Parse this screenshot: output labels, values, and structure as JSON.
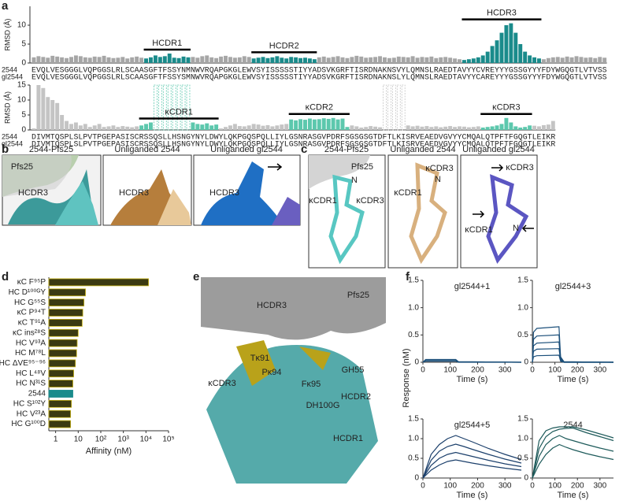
{
  "panel_a": {
    "label": "a",
    "charts": [
      {
        "y_label": "RMSD (Å)",
        "ylim": [
          0,
          15
        ],
        "yticks": [
          0,
          5,
          10
        ],
        "cdr_labels": [
          "HCDR1",
          "HCDR2",
          "HCDR3"
        ],
        "series": [
          {
            "color": "#a6a6a6",
            "values": [
              1.5,
              1.8,
              1.6,
              1.4,
              1.9,
              1.7,
              1.5,
              1.3,
              1.6,
              2.0,
              1.8,
              1.5,
              1.4,
              1.7,
              1.6,
              1.9,
              1.5,
              1.3,
              1.4,
              1.6,
              1.2,
              1.5,
              1.7,
              1.4,
              null,
              null,
              null,
              null,
              null,
              null,
              null,
              null,
              null,
              null,
              1.6,
              1.4,
              1.8,
              2.0,
              1.5,
              1.3,
              1.7,
              1.9,
              1.6,
              1.4,
              1.5,
              1.8,
              1.6,
              null,
              null,
              null,
              null,
              null,
              null,
              null,
              null,
              null,
              null,
              null,
              null,
              null,
              null,
              1.5,
              1.7,
              1.4,
              1.6,
              1.8,
              1.5,
              1.3,
              1.6,
              1.9,
              1.7,
              1.4,
              1.5,
              1.6,
              1.8,
              1.5,
              1.3,
              1.4,
              1.7,
              1.6,
              1.5,
              1.8,
              1.4,
              1.6,
              1.5,
              1.7,
              1.3,
              1.5,
              1.6,
              1.4,
              1.2,
              1.0,
              null,
              null,
              null,
              null,
              null,
              null,
              null,
              null,
              null,
              null,
              null,
              null,
              null,
              null,
              null,
              null,
              null,
              1.0,
              1.3,
              1.5,
              1.6,
              1.4,
              1.7,
              1.5,
              1.8,
              1.6,
              1.4,
              1.5,
              1.3,
              1.6,
              1.4
            ]
          },
          {
            "color": "#1a8b8b",
            "values": [
              null,
              null,
              null,
              null,
              null,
              null,
              null,
              null,
              null,
              null,
              null,
              null,
              null,
              null,
              null,
              null,
              null,
              null,
              null,
              null,
              null,
              null,
              null,
              null,
              1.2,
              1.5,
              2.0,
              1.6,
              1.8,
              2.5,
              1.4,
              1.3,
              1.7,
              1.5,
              null,
              null,
              null,
              null,
              null,
              null,
              null,
              null,
              null,
              null,
              null,
              null,
              null,
              1.2,
              1.4,
              1.6,
              1.3,
              1.5,
              1.8,
              1.4,
              1.2,
              1.6,
              1.5,
              1.3,
              1.4,
              1.2,
              1.0,
              null,
              null,
              null,
              null,
              null,
              null,
              null,
              null,
              null,
              null,
              null,
              null,
              null,
              null,
              null,
              null,
              null,
              null,
              null,
              null,
              null,
              null,
              null,
              null,
              null,
              null,
              null,
              null,
              null,
              null,
              null,
              0.8,
              1.0,
              1.2,
              1.5,
              2.0,
              3.0,
              4.5,
              6.0,
              8.0,
              10.0,
              10.5,
              8.0,
              5.0,
              3.0,
              2.0,
              1.5,
              1.2,
              null,
              null,
              null,
              null,
              null,
              null,
              null,
              null,
              null,
              null,
              null,
              null,
              null,
              null
            ]
          }
        ],
        "seq_labels": [
          "2544",
          "gl2544"
        ],
        "sequences": [
          "EVQLVESGGGLVQPGGSLRLSCAASGFTFSSYNMNWVRQAPGKGLEWVSYISSSSSTIYYADSVKGRFTISRDNAKNSVYLQMNSLRAEDTAVYYCVREYYYGSSGYYYFDYWGQGTLVTVSS",
          "EVQLVESGGGLVQPGGSLRLSCAASGFTFSSYSMNWVRQAPGKGLEWVSYISSSSSTIYYADSVKGRFTISRDNAKNSLYLQMNSLRAEDTAVYYCAREYYYGSSGYYYFDYWGQGTLVTVSS"
        ]
      },
      {
        "y_label": "RMSD (Å)",
        "ylim": [
          0,
          15
        ],
        "yticks": [
          0,
          5,
          10,
          15
        ],
        "cdr_labels": [
          "κCDR1",
          "κCDR2",
          "κCDR3"
        ],
        "series": [
          {
            "color": "#c4c4c4",
            "values": [
              0.5,
              15,
              14,
              11,
              10,
              9,
              5,
              3,
              2,
              2.5,
              1.5,
              2,
              1,
              1.5,
              2,
              1,
              1.2,
              1.5,
              1,
              1.3,
              1.1,
              0.9,
              1.2,
              null,
              null,
              null,
              null,
              null,
              null,
              null,
              null,
              null,
              null,
              null,
              null,
              null,
              null,
              null,
              null,
              null,
              0.5,
              1,
              1.5,
              2,
              1.3,
              1.2,
              1.5,
              2,
              1.8,
              1.4,
              1.6,
              1.2,
              1.5,
              1.8,
              2,
              null,
              null,
              null,
              null,
              null,
              null,
              null,
              null,
              null,
              null,
              null,
              null,
              null,
              1.5,
              1.2,
              0.8,
              1.0,
              1.3,
              1.1,
              0.9,
              null,
              null,
              null,
              null,
              null,
              1.5,
              1.2,
              1.4,
              1.1,
              1.3,
              1.0,
              1.2,
              0.9,
              1.1,
              1.3,
              1.0,
              1.2,
              1.1,
              0.9,
              1.0,
              1.2,
              null,
              null,
              null,
              null,
              null,
              null,
              null,
              null,
              null,
              null,
              null,
              1.4,
              1.2,
              1.6,
              1.8,
              3.0
            ]
          },
          {
            "color": "#5cc8ad",
            "values": [
              null,
              null,
              null,
              null,
              null,
              null,
              null,
              null,
              null,
              null,
              null,
              null,
              null,
              null,
              null,
              null,
              null,
              null,
              null,
              null,
              null,
              null,
              null,
              1.5,
              2.0,
              2.5,
              null,
              null,
              null,
              null,
              null,
              null,
              null,
              null,
              2.5,
              2.0,
              1.8,
              2.2,
              1.5,
              1.8,
              null,
              null,
              null,
              null,
              null,
              null,
              null,
              null,
              null,
              null,
              null,
              null,
              null,
              null,
              null,
              3.5,
              3.2,
              3.6,
              3.4,
              3.8,
              3.5,
              3.6,
              3.9,
              3.7,
              4.0,
              3.5,
              3.8,
              1.0,
              null,
              null,
              null,
              null,
              null,
              null,
              null,
              null,
              null,
              null,
              null,
              null,
              null,
              null,
              null,
              null,
              null,
              null,
              null,
              null,
              null,
              null,
              null,
              null,
              null,
              null,
              null,
              null,
              0.8,
              1.0,
              1.2,
              1.5,
              2.0,
              4.0,
              2.5,
              1.2,
              0.8,
              1.0,
              1.5,
              null,
              null,
              null,
              null,
              null
            ]
          }
        ],
        "seq_labels": [
          "2544",
          "gl2544"
        ],
        "sequences": [
          "DIVMTQSPLSLPVTPGEPASISCRSSQSLLHSNGYNYLDWYLQKPGQSPQLLIYLGSNRASGVPDRFSGSGSGTDFTLKISRVEAEDVGVYYCMQALQTPFTFGQGTLEIKR",
          "DIVMTQSPLSLPVTPGEPASISCRSSQSLLHSNGYNYLDWYLQKPGQSPQLLIYLGSNRASGVPDRFSGSGSGTDFTLKISRVEAEDVGVYYCMQALQTPFTFGQGTLEIKR"
        ]
      }
    ]
  },
  "panel_b": {
    "label": "b",
    "headers": [
      "2544-Pfs25",
      "Unliganded 2544",
      "Unliganded gl2544"
    ],
    "labels": [
      "Pfs25",
      "HCDR3",
      "HCDR3",
      "HCDR3"
    ]
  },
  "panel_c": {
    "label": "c",
    "headers": [
      "2544-Pfs25",
      "Unliganded 2544",
      "Unliganded gl2544"
    ],
    "labels": [
      "Pfs25",
      "N",
      "κCDR1",
      "κCDR3",
      "κCDR3",
      "N",
      "κCDR1",
      "κCDR3",
      "κCDR1",
      "N"
    ]
  },
  "panel_d": {
    "label": "d",
    "type": "bar",
    "x_label": "Affinity (nM)",
    "log_x": true,
    "xlim": [
      0.5,
      100000
    ],
    "xticks": [
      {
        "value": 1,
        "label": "1"
      },
      {
        "value": 10,
        "label": "10"
      },
      {
        "value": 100,
        "label": "10²"
      },
      {
        "value": 1000,
        "label": "10³"
      },
      {
        "value": 10000,
        "label": "10⁴"
      },
      {
        "value": 100000,
        "label": "10⁵"
      }
    ],
    "categories": [
      "κC F⁹⁵P",
      "HC D¹⁰⁰ᴳY",
      "HC G⁵⁵S",
      "κC P⁹⁴T",
      "κC T⁹¹A",
      "κC ins²⁸S",
      "HC V⁹³A",
      "HC M⁷⁸L",
      "HC ΔVE⁹⁵⁻⁹⁶",
      "HC L⁴⁸V",
      "HC N³¹S",
      "2544",
      "HC S¹⁰²Y",
      "HC V²³A",
      "HC G¹⁰⁰D"
    ],
    "values": [
      13000,
      21,
      18,
      16,
      15,
      10,
      9,
      8.5,
      7.5,
      6.3,
      5.8,
      5.8,
      5,
      4.6,
      4.6
    ],
    "colors": [
      "#3b3a12",
      "#3b3a12",
      "#3b3a12",
      "#3b3a12",
      "#3b3a12",
      "#3b3a12",
      "#3b3a12",
      "#3b3a12",
      "#3b3a12",
      "#3b3a12",
      "#3b3a12",
      "#1a8b8b",
      "#3b3a12",
      "#3b3a12",
      "#3b3a12"
    ]
  },
  "panel_e": {
    "label": "e",
    "labels": [
      "Pfs25",
      "HCDR3",
      "κCDR3",
      "Tκ91",
      "Pκ94",
      "Fκ95",
      "GH55",
      "DH100G",
      "HCDR2",
      "HCDR1"
    ]
  },
  "panel_f": {
    "label": "f",
    "y_label": "Response (nM)",
    "charts": [
      {
        "type": "line",
        "title": "gl2544+1",
        "x_label": "Time (s)",
        "xlim": [
          0,
          360
        ],
        "xticks": [
          0,
          100,
          200,
          300
        ],
        "ylim": [
          0,
          1.5
        ],
        "yticks": [
          0,
          0.5,
          {
            "value": 1,
            "label": "1.0"
          },
          1.5
        ],
        "x": [
          0,
          10,
          120,
          130,
          360
        ],
        "series": [
          {
            "color": "#1b4f7a",
            "values": [
              0,
              0.05,
              0.05,
              0.01,
              0
            ]
          },
          {
            "color": "#1b4f7a",
            "values": [
              0,
              0.03,
              0.03,
              0.01,
              0
            ]
          },
          {
            "color": "#1b4f7a",
            "values": [
              0,
              0.02,
              0.02,
              0,
              0
            ]
          }
        ]
      },
      {
        "type": "line",
        "title": "gl2544+3",
        "x_label": "Time (s)",
        "xlim": [
          0,
          360
        ],
        "xticks": [
          0,
          100,
          200,
          300
        ],
        "ylim": [
          0,
          1.5
        ],
        "yticks": [
          0,
          0.5,
          {
            "value": 1,
            "label": "1.0"
          },
          1.5
        ],
        "x": [
          0,
          5,
          20,
          118,
          125,
          140,
          360
        ],
        "series": [
          {
            "color": "#1b4f7a",
            "values": [
              0,
              0.55,
              0.62,
              0.65,
              0.1,
              0.01,
              0
            ]
          },
          {
            "color": "#1b4f7a",
            "values": [
              0,
              0.42,
              0.48,
              0.5,
              0.08,
              0.01,
              0
            ]
          },
          {
            "color": "#1b4f7a",
            "values": [
              0,
              0.3,
              0.35,
              0.37,
              0.06,
              0,
              0
            ]
          },
          {
            "color": "#1b4f7a",
            "values": [
              0,
              0.2,
              0.24,
              0.25,
              0.04,
              0,
              0
            ]
          },
          {
            "color": "#1b4f7a",
            "values": [
              0,
              0.1,
              0.12,
              0.13,
              0.02,
              0,
              0
            ]
          }
        ]
      },
      {
        "type": "line",
        "title": "gl2544+5",
        "x_label": "Time (s)",
        "xlim": [
          0,
          360
        ],
        "xticks": [
          0,
          100,
          200,
          300
        ],
        "ylim": [
          0,
          1.5
        ],
        "yticks": [
          0,
          0.5,
          {
            "value": 1,
            "label": "1.0"
          },
          1.5
        ],
        "x": [
          0,
          30,
          60,
          90,
          120,
          150,
          180,
          240,
          300,
          360
        ],
        "series": [
          {
            "color": "#1b3f6b",
            "values": [
              0,
              0.6,
              0.85,
              1.0,
              1.08,
              1.0,
              0.92,
              0.75,
              0.6,
              0.47
            ]
          },
          {
            "color": "#1b3f6b",
            "values": [
              0,
              0.45,
              0.68,
              0.8,
              0.86,
              0.8,
              0.73,
              0.6,
              0.48,
              0.38
            ]
          },
          {
            "color": "#1b3f6b",
            "values": [
              0,
              0.32,
              0.5,
              0.6,
              0.65,
              0.6,
              0.55,
              0.45,
              0.36,
              0.29
            ]
          },
          {
            "color": "#1b3f6b",
            "values": [
              0,
              0.2,
              0.33,
              0.42,
              0.46,
              0.42,
              0.38,
              0.31,
              0.25,
              0.2
            ]
          }
        ]
      },
      {
        "type": "line",
        "title": "2544",
        "x_label": "Time (s)",
        "xlim": [
          0,
          360
        ],
        "xticks": [
          0,
          100,
          200,
          300
        ],
        "ylim": [
          0,
          1.5
        ],
        "yticks": [
          0,
          0.5,
          {
            "value": 1,
            "label": "1.0"
          },
          1.5
        ],
        "x": [
          0,
          30,
          60,
          90,
          120,
          150,
          180,
          240,
          300,
          360
        ],
        "series": [
          {
            "color": "#1d5a5a",
            "values": [
              0,
              0.95,
              1.2,
              1.27,
              1.3,
              1.3,
              1.3,
              1.22,
              1.12,
              1.02
            ]
          },
          {
            "color": "#1d5a5a",
            "values": [
              0,
              0.75,
              1.05,
              1.18,
              1.24,
              1.26,
              1.27,
              1.15,
              1.05,
              0.95
            ]
          },
          {
            "color": "#1d5a5a",
            "values": [
              0,
              0.55,
              0.85,
              1.0,
              1.08,
              1.0,
              0.95,
              0.85,
              0.76,
              0.68
            ]
          },
          {
            "color": "#1d5a5a",
            "values": [
              0,
              0.35,
              0.6,
              0.76,
              0.85,
              0.78,
              0.72,
              0.62,
              0.54,
              0.47
            ]
          }
        ]
      }
    ]
  }
}
